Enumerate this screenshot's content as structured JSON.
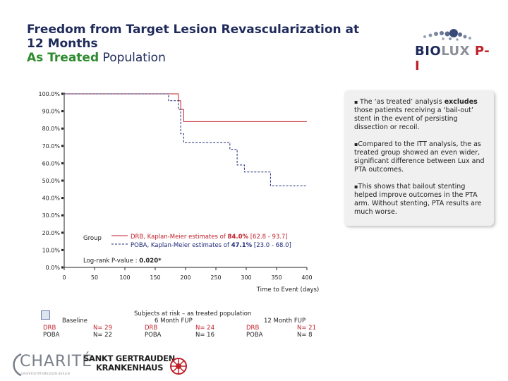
{
  "header": {
    "title_line1": "Freedom from Target Lesion Revascularization at",
    "title_line2": "12 Months",
    "title_highlight": "As Treated",
    "title_rest": " Population"
  },
  "logo": {
    "biolux_part1": "BIO",
    "biolux_part2": "LUX",
    "biolux_part3": " P-I"
  },
  "colors": {
    "drb": "#c0202a",
    "poba": "#1e2a7a",
    "title": "#1e2a5a",
    "accent_green": "#2e8b2e"
  },
  "chart_data": {
    "type": "line",
    "title": "",
    "xlabel": "Time to Event (days)",
    "ylabel": "",
    "xlim": [
      0,
      400
    ],
    "ylim": [
      0,
      100
    ],
    "x_ticks": [
      0,
      50,
      100,
      150,
      200,
      250,
      300,
      350,
      400
    ],
    "y_ticks": [
      0,
      10,
      20,
      30,
      40,
      50,
      60,
      70,
      80,
      90,
      100
    ],
    "y_tick_labels": [
      "0.0%",
      "10.0%",
      "20.0%",
      "30.0%",
      "40.0%",
      "50.0%",
      "60.0%",
      "70.0%",
      "80.0%",
      "90.0%",
      "100.0%"
    ],
    "x_tick_labels": [
      "0",
      "50",
      "100",
      "150",
      "200",
      "250",
      "300",
      "350",
      "400"
    ],
    "series": [
      {
        "name": "DRB",
        "style": "solid",
        "x": [
          0,
          188,
          188,
          192,
          192,
          197,
          197,
          400
        ],
        "y": [
          100,
          100,
          96,
          96,
          91,
          91,
          84,
          84
        ]
      },
      {
        "name": "POBA",
        "style": "dashed",
        "x": [
          0,
          172,
          172,
          188,
          188,
          192,
          192,
          197,
          197,
          273,
          273,
          285,
          285,
          297,
          297,
          340,
          340,
          400
        ],
        "y": [
          100,
          100,
          96,
          96,
          91,
          91,
          77,
          77,
          72,
          72,
          68,
          68,
          59,
          59,
          55,
          55,
          47,
          47
        ]
      }
    ],
    "legend": {
      "group_label": "Group",
      "drb_prefix": "DRB, Kaplan-Meier estimates of ",
      "drb_value": "84.0%",
      "drb_ci": " [62.8 - 93.7]",
      "poba_prefix": "POBA, Kaplan-Meier estimates of ",
      "poba_value": "47.1%",
      "poba_ci": " [23.0 - 68.0]",
      "pvalue_label": "Log-rank P-value : ",
      "pvalue_value": "0.020*"
    }
  },
  "notes": [
    {
      "pre": "The ‘as treated’ analysis ",
      "bold": "excludes",
      "post": " those patients receiving a ‘bail-out’ stent in the event of persisting dissection or recoil."
    },
    {
      "pre": "Compared to the ITT analysis, the as treated group showed an even wider, significant difference between Lux and PTA outcomes.",
      "bold": "",
      "post": ""
    },
    {
      "pre": "This shows that bailout stenting helped improve outcomes in the PTA arm.  Without stenting, PTA results are much worse.",
      "bold": "",
      "post": ""
    }
  ],
  "risk_table": {
    "title": "Subjects at risk – as treated population",
    "baseline_label": "Baseline",
    "six_month_label": "6 Month FUP",
    "twelve_month_label": "12 Month FUP",
    "baseline": {
      "drb_label": "DRB",
      "drb_n": "N= 29",
      "poba_label": "POBA",
      "poba_n": "N= 22"
    },
    "six_month": {
      "drb_label": "DRB",
      "drb_n": "N= 24",
      "poba_label": "POBA",
      "poba_n": "N= 16"
    },
    "twelve_month": {
      "drb_label": "DRB",
      "drb_n": "N= 21",
      "poba_label": "POBA",
      "poba_n": "N=  8"
    }
  },
  "footer": {
    "charite_name": "CHARITÉ",
    "charite_sub": "UNIVERSITÄTSMEDIZIN BERLIN",
    "hospital_line1": "SANKT GERTRAUDEN",
    "hospital_line2": "KRANKENHAUS"
  }
}
